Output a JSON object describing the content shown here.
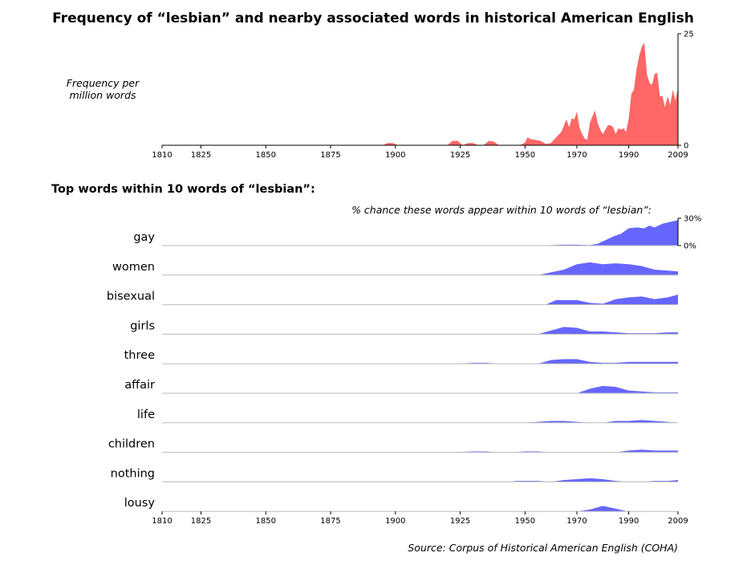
{
  "title": "Frequency of “lesbian” and nearby associated words in historical American English",
  "top_panel": {
    "ylabel_line1": "Frequency per",
    "ylabel_line2": "million words"
  },
  "bottom_panel": {
    "heading": "Top words within 10 words of “lesbian”:",
    "subtitle": "% chance these words appear within 10 words of “lesbian”:"
  },
  "source": "Source: Corpus of Historical American English (COHA)",
  "colors": {
    "frequency_fill": "#ff6666",
    "cooccurrence_fill": "#6666ff",
    "baseline": "#bbbbbb"
  },
  "chart_data": [
    {
      "type": "area",
      "title": "Frequency of “lesbian” and nearby associated words in historical American English",
      "ylabel": "Frequency per million words",
      "xlim": [
        1810,
        2009
      ],
      "ylim": [
        0,
        25
      ],
      "x_ticks": [
        "1810",
        "1825",
        "1850",
        "1875",
        "1900",
        "1925",
        "1950",
        "1970",
        "1990",
        "2009"
      ],
      "y_ticks": [
        "0",
        "25"
      ],
      "series": [
        {
          "x": [
            1810,
            1895,
            1897,
            1899,
            1901,
            1920,
            1922,
            1924,
            1926,
            1928,
            1930,
            1932,
            1934,
            1936,
            1938,
            1940,
            1948,
            1950,
            1951,
            1952,
            1954,
            1956,
            1958,
            1960,
            1962,
            1964,
            1966,
            1967,
            1968,
            1969,
            1970,
            1971,
            1972,
            1973,
            1974,
            1975,
            1976,
            1977,
            1978,
            1979,
            1980,
            1981,
            1982,
            1983,
            1984,
            1985,
            1986,
            1987,
            1988,
            1989,
            1990,
            1991,
            1992,
            1993,
            1994,
            1995,
            1996,
            1997,
            1998,
            1999,
            2000,
            2001,
            2002,
            2003,
            2004,
            2005,
            2006,
            2007,
            2008,
            2009
          ],
          "values": [
            0,
            0,
            0.5,
            0.5,
            0,
            0,
            1,
            1,
            0,
            0.5,
            0.5,
            0,
            0,
            1,
            0.8,
            0,
            0,
            0.6,
            1.8,
            1.4,
            1.2,
            1.0,
            0.3,
            0.5,
            1.8,
            3.0,
            5.8,
            4.0,
            6.0,
            5.8,
            7.5,
            4.0,
            2.5,
            1.5,
            1.2,
            5.0,
            6.5,
            7.8,
            5.0,
            3.5,
            2.5,
            3.5,
            4.5,
            4.5,
            4.0,
            2.5,
            3.8,
            3.5,
            3.8,
            3.0,
            6.0,
            11.5,
            12.5,
            17.0,
            20.0,
            22.0,
            23.0,
            16.0,
            14.0,
            13.5,
            16.0,
            16.2,
            11.0,
            11.0,
            8.5,
            11.0,
            9.0,
            12.5,
            10.0,
            13.0
          ]
        }
      ]
    },
    {
      "type": "area",
      "title": "Top words within 10 words of “lesbian”:",
      "subtitle": "% chance these words appear within 10 words of “lesbian”:",
      "xlim": [
        1810,
        2009
      ],
      "ylim": [
        0,
        30
      ],
      "x_ticks": [
        "1810",
        "1825",
        "1850",
        "1875",
        "1900",
        "1925",
        "1950",
        "1970",
        "1990",
        "2009"
      ],
      "y_ticks": [
        "0%",
        "30%"
      ],
      "series": [
        {
          "name": "gay",
          "x": [
            1813,
            1845,
            1955,
            1960,
            1965,
            1970,
            1975,
            1978,
            1981,
            1984,
            1987,
            1990,
            1993,
            1996,
            1998,
            2000,
            2003,
            2006,
            2009
          ],
          "values": [
            0,
            0,
            0,
            0.5,
            1,
            1,
            0.5,
            2,
            6,
            10,
            13,
            19,
            20,
            19,
            22,
            20,
            24,
            26,
            28
          ]
        },
        {
          "name": "women",
          "x": [
            1955,
            1960,
            1965,
            1970,
            1975,
            1980,
            1985,
            1990,
            1995,
            2000,
            2005,
            2009
          ],
          "values": [
            0,
            3,
            6,
            12,
            14,
            12,
            13,
            12,
            10,
            6,
            5,
            4
          ]
        },
        {
          "name": "bisexual",
          "x": [
            1958,
            1962,
            1965,
            1970,
            1975,
            1980,
            1985,
            1990,
            1995,
            2000,
            2005,
            2009
          ],
          "values": [
            0,
            5,
            5,
            5,
            2,
            1,
            6,
            8,
            9,
            6,
            8,
            11
          ]
        },
        {
          "name": "girls",
          "x": [
            1955,
            1960,
            1965,
            1970,
            1975,
            1980,
            1985,
            1990,
            1995,
            2000,
            2005,
            2009
          ],
          "values": [
            0,
            4,
            8,
            7,
            3,
            3,
            2,
            1,
            1,
            1,
            2,
            2
          ]
        },
        {
          "name": "three",
          "x": [
            1925,
            1930,
            1935,
            1940,
            1955,
            1960,
            1965,
            1970,
            1975,
            1980,
            1985,
            1990,
            1995,
            2000,
            2005,
            2009
          ],
          "values": [
            0,
            1,
            1,
            0,
            0,
            4,
            5,
            5,
            2,
            1,
            1,
            2,
            2,
            2,
            2,
            2
          ]
        },
        {
          "name": "affair",
          "x": [
            1970,
            1972,
            1975,
            1980,
            1985,
            1990,
            1995,
            2000,
            2005,
            2009
          ],
          "values": [
            0,
            2,
            5,
            8,
            7,
            3,
            2,
            1,
            1,
            1
          ]
        },
        {
          "name": "life",
          "x": [
            1950,
            1955,
            1960,
            1965,
            1970,
            1975,
            1980,
            1985,
            1990,
            1995,
            2000,
            2005,
            2009
          ],
          "values": [
            0,
            1,
            2,
            2,
            1,
            0,
            0,
            2,
            2,
            3,
            2,
            1,
            0
          ]
        },
        {
          "name": "children",
          "x": [
            1922,
            1930,
            1935,
            1940,
            1945,
            1950,
            1955,
            1960,
            1965,
            1970,
            1985,
            1990,
            1995,
            2000,
            2005,
            2009
          ],
          "values": [
            0,
            1,
            1,
            0,
            0,
            1,
            1,
            0,
            0,
            0,
            0,
            2,
            3,
            2,
            2,
            2
          ]
        },
        {
          "name": "nothing",
          "x": [
            1943,
            1947,
            1950,
            1955,
            1960,
            1965,
            1970,
            1975,
            1980,
            1985,
            1990,
            1995,
            2000,
            2005,
            2009
          ],
          "values": [
            0,
            1,
            1,
            1,
            0,
            2,
            3,
            4,
            3,
            1,
            0,
            0,
            1,
            1,
            2
          ]
        },
        {
          "name": "lousy",
          "x": [
            1970,
            1975,
            1980,
            1985,
            1988,
            1990,
            2009
          ],
          "values": [
            0,
            2,
            6,
            3,
            1,
            0,
            0
          ]
        }
      ]
    }
  ]
}
